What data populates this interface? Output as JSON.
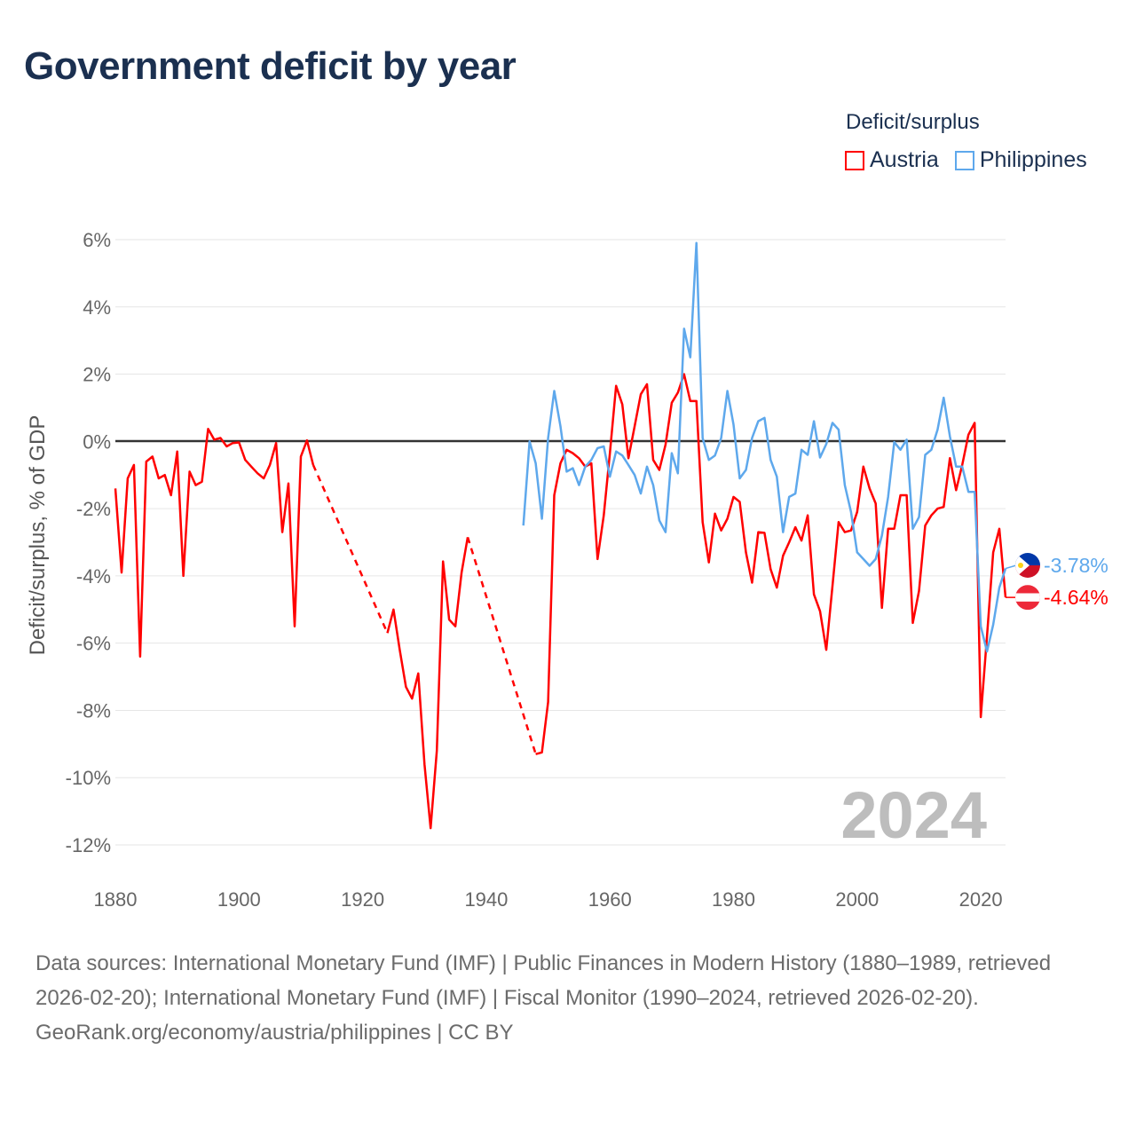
{
  "title": "Government deficit by year",
  "legend": {
    "title": "Deficit/surplus",
    "items": [
      {
        "label": "Austria",
        "color": "#ff0000"
      },
      {
        "label": "Philippines",
        "color": "#5ea8ec"
      }
    ]
  },
  "footer": {
    "sources": "Data sources: International Monetary Fund (IMF) | Public Finances in Modern History (1880–1989, retrieved 2026-02-20); International Monetary Fund (IMF) | Fiscal Monitor (1990–2024, retrieved 2026-02-20).",
    "credit": "GeoRank.org/economy/austria/philippines | CC BY"
  },
  "chart_data": {
    "type": "line",
    "title": "Government deficit by year",
    "xlabel": "",
    "ylabel": "Deficit/surplus, % of GDP",
    "xlim": [
      1880,
      2024
    ],
    "ylim": [
      -12,
      6
    ],
    "xticks": [
      "1880",
      "1900",
      "1920",
      "1940",
      "1960",
      "1980",
      "2000",
      "2020"
    ],
    "yticks": [
      "6%",
      "4%",
      "2%",
      "0%",
      "-2%",
      "-4%",
      "-6%",
      "-8%",
      "-10%",
      "-12%"
    ],
    "grid": true,
    "legend_position": "top-right",
    "year_label": "2024",
    "series": [
      {
        "name": "Austria",
        "color": "#ff0000",
        "end_label": "-4.64%",
        "x": [
          1880,
          1881,
          1882,
          1883,
          1884,
          1885,
          1886,
          1887,
          1888,
          1889,
          1890,
          1891,
          1892,
          1893,
          1894,
          1895,
          1896,
          1897,
          1898,
          1899,
          1900,
          1901,
          1902,
          1903,
          1904,
          1905,
          1906,
          1907,
          1908,
          1909,
          1910,
          1911,
          1912,
          1924,
          1925,
          1926,
          1927,
          1928,
          1929,
          1930,
          1931,
          1932,
          1933,
          1934,
          1935,
          1936,
          1937,
          1948,
          1949,
          1950,
          1951,
          1952,
          1953,
          1954,
          1955,
          1956,
          1957,
          1958,
          1959,
          1960,
          1961,
          1962,
          1963,
          1964,
          1965,
          1966,
          1967,
          1968,
          1969,
          1970,
          1971,
          1972,
          1973,
          1974,
          1975,
          1976,
          1977,
          1978,
          1979,
          1980,
          1981,
          1982,
          1983,
          1984,
          1985,
          1986,
          1987,
          1988,
          1989,
          1990,
          1991,
          1992,
          1993,
          1994,
          1995,
          1996,
          1997,
          1998,
          1999,
          2000,
          2001,
          2002,
          2003,
          2004,
          2005,
          2006,
          2007,
          2008,
          2009,
          2010,
          2011,
          2012,
          2013,
          2014,
          2015,
          2016,
          2017,
          2018,
          2019,
          2020,
          2021,
          2022,
          2023,
          2024
        ],
        "values": [
          -1.4,
          -3.9,
          -1.1,
          -0.7,
          -6.4,
          -0.6,
          -0.45,
          -1.1,
          -1.0,
          -1.6,
          -0.3,
          -4.0,
          -0.9,
          -1.3,
          -1.2,
          0.37,
          0.05,
          0.1,
          -0.15,
          -0.05,
          -0.03,
          -0.55,
          -0.75,
          -0.95,
          -1.1,
          -0.7,
          -0.05,
          -2.7,
          -1.25,
          -5.5,
          -0.45,
          0.03,
          -0.7,
          -5.7,
          -5.0,
          -6.2,
          -7.3,
          -7.65,
          -6.9,
          -9.6,
          -11.5,
          -9.2,
          -3.57,
          -5.3,
          -5.5,
          -3.9,
          -2.85,
          -9.3,
          -9.25,
          -7.75,
          -1.6,
          -0.65,
          -0.25,
          -0.35,
          -0.5,
          -0.75,
          -0.65,
          -3.5,
          -2.2,
          -0.35,
          1.65,
          1.1,
          -0.5,
          0.45,
          1.4,
          1.7,
          -0.55,
          -0.85,
          -0.1,
          1.15,
          1.45,
          2.0,
          1.2,
          1.2,
          -2.4,
          -3.6,
          -2.15,
          -2.65,
          -2.3,
          -1.65,
          -1.8,
          -3.3,
          -4.2,
          -2.7,
          -2.72,
          -3.8,
          -4.35,
          -3.4,
          -3.0,
          -2.55,
          -2.95,
          -2.2,
          -4.55,
          -5.05,
          -6.2,
          -4.3,
          -2.4,
          -2.7,
          -2.65,
          -2.1,
          -0.75,
          -1.4,
          -1.85,
          -4.95,
          -2.6,
          -2.6,
          -1.6,
          -1.6,
          -5.4,
          -4.45,
          -2.5,
          -2.2,
          -2.0,
          -1.95,
          -0.5,
          -1.45,
          -0.7,
          0.2,
          0.55,
          -8.2,
          -5.8,
          -3.3,
          -2.6,
          -4.64
        ],
        "dashed_gaps": [
          [
            1912,
            1924
          ],
          [
            1937,
            1948
          ]
        ]
      },
      {
        "name": "Philippines",
        "color": "#5ea8ec",
        "end_label": "-3.78%",
        "x": [
          1946,
          1947,
          1948,
          1949,
          1950,
          1951,
          1952,
          1953,
          1954,
          1955,
          1956,
          1957,
          1958,
          1959,
          1960,
          1961,
          1962,
          1963,
          1964,
          1965,
          1966,
          1967,
          1968,
          1969,
          1970,
          1971,
          1972,
          1973,
          1974,
          1975,
          1976,
          1977,
          1978,
          1979,
          1980,
          1981,
          1982,
          1983,
          1984,
          1985,
          1986,
          1987,
          1988,
          1989,
          1990,
          1991,
          1992,
          1993,
          1994,
          1995,
          1996,
          1997,
          1998,
          1999,
          2000,
          2001,
          2002,
          2003,
          2004,
          2005,
          2006,
          2007,
          2008,
          2009,
          2010,
          2011,
          2012,
          2013,
          2014,
          2015,
          2016,
          2017,
          2018,
          2019,
          2020,
          2021,
          2022,
          2023,
          2024
        ],
        "values": [
          -2.5,
          0.0,
          -0.65,
          -2.3,
          0.1,
          1.5,
          0.45,
          -0.9,
          -0.8,
          -1.3,
          -0.75,
          -0.55,
          -0.2,
          -0.15,
          -1.05,
          -0.3,
          -0.42,
          -0.7,
          -1.0,
          -1.55,
          -0.75,
          -1.3,
          -2.35,
          -2.7,
          -0.35,
          -0.95,
          3.35,
          2.5,
          5.9,
          0.1,
          -0.55,
          -0.42,
          0.1,
          1.5,
          0.5,
          -1.1,
          -0.85,
          0.1,
          0.6,
          0.7,
          -0.55,
          -1.05,
          -2.7,
          -1.65,
          -1.55,
          -0.25,
          -0.4,
          0.6,
          -0.48,
          -0.08,
          0.55,
          0.35,
          -1.3,
          -2.1,
          -3.3,
          -3.5,
          -3.7,
          -3.5,
          -2.8,
          -1.65,
          -0.02,
          -0.25,
          0.05,
          -2.6,
          -2.25,
          -0.4,
          -0.25,
          0.35,
          1.3,
          0.15,
          -0.75,
          -0.75,
          -1.5,
          -1.5,
          -5.5,
          -6.25,
          -5.45,
          -4.35,
          -3.78
        ]
      }
    ]
  }
}
